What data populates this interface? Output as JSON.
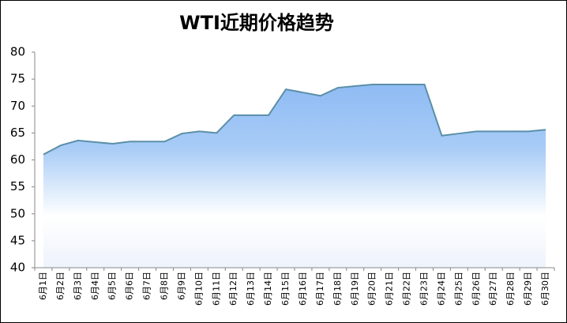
{
  "chart_data": {
    "type": "area",
    "title": "WTI近期价格趋势",
    "categories": [
      "6月1日",
      "6月2日",
      "6月3日",
      "6月4日",
      "6月5日",
      "6月6日",
      "6月7日",
      "6月8日",
      "6月9日",
      "6月10日",
      "6月11日",
      "6月12日",
      "6月13日",
      "6月14日",
      "6月15日",
      "6月16日",
      "6月17日",
      "6月18日",
      "6月19日",
      "6月20日",
      "6月21日",
      "6月22日",
      "6月23日",
      "6月24日",
      "6月25日",
      "6月26日",
      "6月27日",
      "6月28日",
      "6月29日",
      "6月30日"
    ],
    "values": [
      61.0,
      62.7,
      63.6,
      63.3,
      63.0,
      63.4,
      63.4,
      63.4,
      64.9,
      65.3,
      65.0,
      68.3,
      68.3,
      68.3,
      73.1,
      72.5,
      71.9,
      73.4,
      73.7,
      74.0,
      74.0,
      74.0,
      74.0,
      64.5,
      64.9,
      65.3,
      65.3,
      65.3,
      65.3,
      65.6
    ],
    "color": "#5b8fa8",
    "ylim": [
      40,
      80
    ],
    "yticks": [
      40,
      45,
      50,
      55,
      60,
      65,
      70,
      75,
      80
    ]
  }
}
